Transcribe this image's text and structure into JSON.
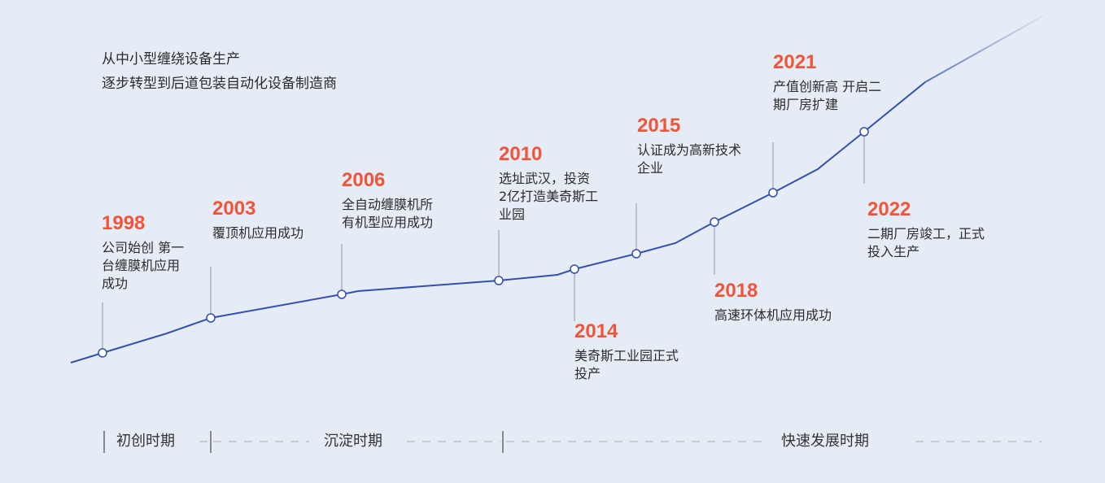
{
  "intro": [
    "从中小型缠绕设备生产",
    "逐步转型到后道包装自动化设备制造商"
  ],
  "events": [
    {
      "year": "1998",
      "lines": [
        "公司始创 第一",
        "台缠膜机应用",
        "成功"
      ]
    },
    {
      "year": "2003",
      "lines": [
        "覆顶机应用成功"
      ]
    },
    {
      "year": "2006",
      "lines": [
        "全自动缠膜机所",
        "有机型应用成功"
      ]
    },
    {
      "year": "2010",
      "lines": [
        "选址武汉，投资",
        "2亿打造美奇斯工",
        "业园"
      ]
    },
    {
      "year": "2014",
      "lines": [
        "美奇斯工业园正式",
        "投产"
      ]
    },
    {
      "year": "2015",
      "lines": [
        "认证成为高新技术",
        "企业"
      ]
    },
    {
      "year": "2018",
      "lines": [
        "高速环体机应用成功"
      ]
    },
    {
      "year": "2021",
      "lines": [
        "产值创新高 开启二",
        "期厂房扩建"
      ]
    },
    {
      "year": "2022",
      "lines": [
        "二期厂房竣工，正式",
        "投入生产"
      ]
    }
  ],
  "periods": [
    "初创时期",
    "沉淀时期",
    "快速发展时期"
  ],
  "colors": {
    "line": "#3350b0",
    "year": "#f0553a",
    "background": "#e6ecf5"
  }
}
